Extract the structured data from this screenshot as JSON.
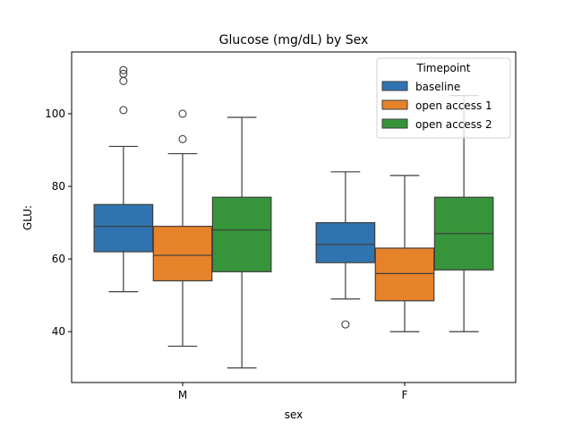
{
  "chart_data": {
    "type": "box",
    "title": "Glucose (mg/dL) by Sex",
    "xlabel": "sex",
    "ylabel": "GLU:",
    "ylim": [
      26,
      117
    ],
    "yticks": [
      40,
      60,
      80,
      100
    ],
    "categories": [
      "M",
      "F"
    ],
    "legend": {
      "title": "Timepoint",
      "position": "top-right"
    },
    "grid": false,
    "series": [
      {
        "name": "baseline",
        "color": "#2f74b0",
        "boxes": [
          {
            "category": "M",
            "whisker_low": 51,
            "q1": 62,
            "median": 69,
            "q3": 75,
            "whisker_high": 91,
            "outliers": [
              101,
              109,
              111,
              112
            ]
          },
          {
            "category": "F",
            "whisker_low": 49,
            "q1": 59,
            "median": 64,
            "q3": 70,
            "whisker_high": 84,
            "outliers": [
              42
            ]
          }
        ]
      },
      {
        "name": "open access 1",
        "color": "#e6822a",
        "boxes": [
          {
            "category": "M",
            "whisker_low": 36,
            "q1": 54,
            "median": 61,
            "q3": 69,
            "whisker_high": 89,
            "outliers": [
              93,
              100
            ]
          },
          {
            "category": "F",
            "whisker_low": 40,
            "q1": 48.5,
            "median": 56,
            "q3": 63,
            "whisker_high": 83,
            "outliers": []
          }
        ]
      },
      {
        "name": "open access 2",
        "color": "#36953a",
        "boxes": [
          {
            "category": "M",
            "whisker_low": 30,
            "q1": 56.5,
            "median": 68,
            "q3": 77,
            "whisker_high": 99,
            "outliers": []
          },
          {
            "category": "F",
            "whisker_low": 40,
            "q1": 57,
            "median": 67,
            "q3": 77,
            "whisker_high": 105,
            "outliers": []
          }
        ]
      }
    ]
  }
}
